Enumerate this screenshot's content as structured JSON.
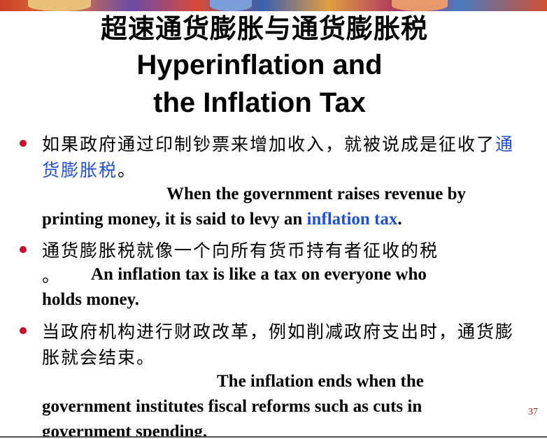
{
  "slide": {
    "title_cn": "超速通货膨胀与通货膨胀税",
    "title_en_line1": "Hyperinflation and",
    "title_en_line2": "the Inflation Tax",
    "page_number": "37"
  },
  "bullets": [
    {
      "cn_prefix": "如果政府通过印制钞票来增加收入，就被说成是征收了",
      "cn_highlight": "通货膨胀税",
      "cn_suffix": "。",
      "en_line1": "When the government raises revenue by",
      "en_line2_prefix": "printing money, it is said to levy an ",
      "en_highlight": "inflation tax",
      "en_suffix": "."
    },
    {
      "cn_text": "通货膨胀税就像一个向所有货币持有者征收的税",
      "cn_period": "。",
      "en_line1": "An inflation tax is like a tax on everyone who",
      "en_line2": "holds money."
    },
    {
      "cn_text": "当政府机构进行财政改革，例如削减政府支出时，通货膨胀就会结束。",
      "en_line1": "The inflation ends when the",
      "en_line2": "government institutes fiscal reforms such as cuts in",
      "en_line3": "government spending."
    }
  ],
  "colors": {
    "bullet": "#c8102e",
    "highlight": "#2050d8",
    "page_number": "#8b1a1a"
  }
}
